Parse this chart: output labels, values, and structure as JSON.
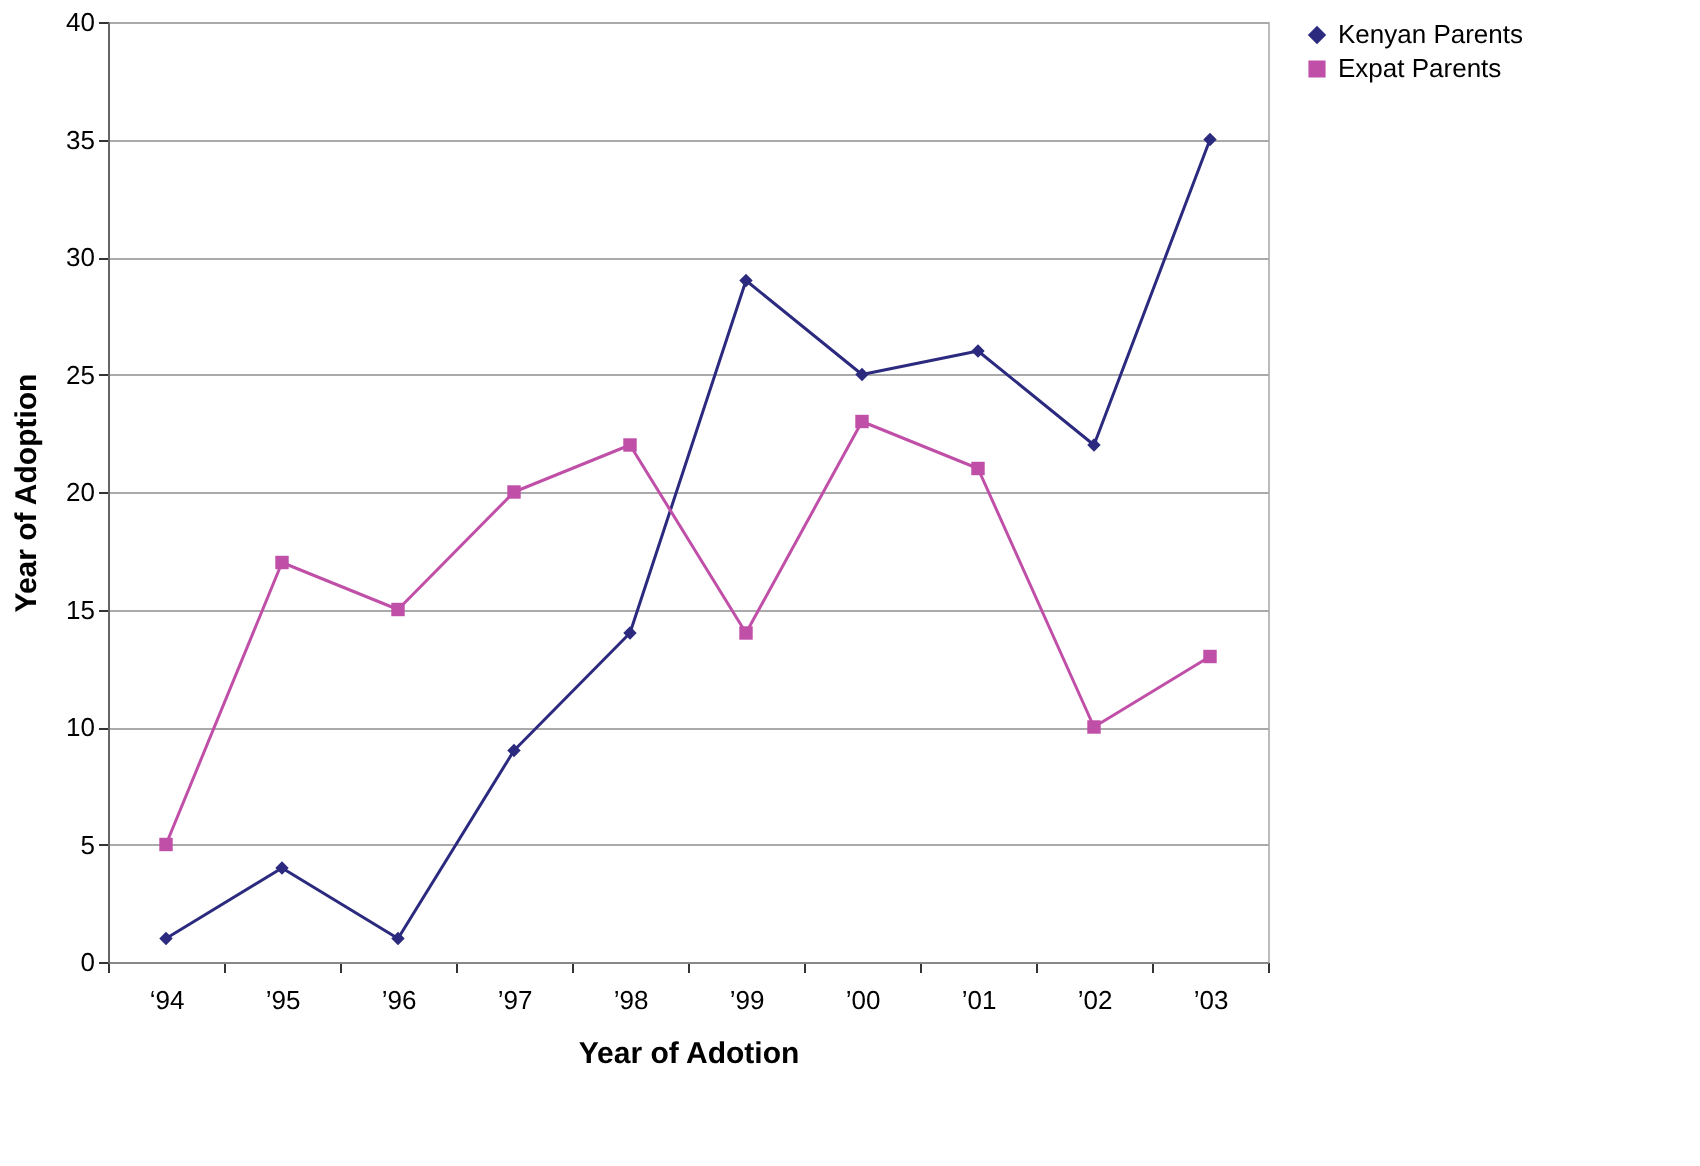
{
  "chart_data": {
    "type": "line",
    "xlabel": "Year of Adotion",
    "ylabel": "Year of Adoption",
    "categories": [
      "‘94",
      "’95",
      "’96",
      "’97",
      "’98",
      "’99",
      "’00",
      "’01",
      "’02",
      "’03"
    ],
    "series": [
      {
        "name": "Kenyan Parents",
        "color": "#2b2a7f",
        "marker": "diamond",
        "values": [
          1,
          4,
          1,
          9,
          14,
          29,
          25,
          26,
          22,
          35
        ]
      },
      {
        "name": "Expat Parents",
        "color": "#c04fa8",
        "marker": "square",
        "values": [
          5,
          17,
          15,
          20,
          22,
          14,
          23,
          21,
          10,
          13
        ]
      }
    ],
    "ylim": [
      0,
      40
    ],
    "yticks": [
      0,
      5,
      10,
      15,
      20,
      25,
      30,
      35,
      40
    ],
    "grid": "y",
    "legend": "right",
    "line_style": "solid"
  }
}
